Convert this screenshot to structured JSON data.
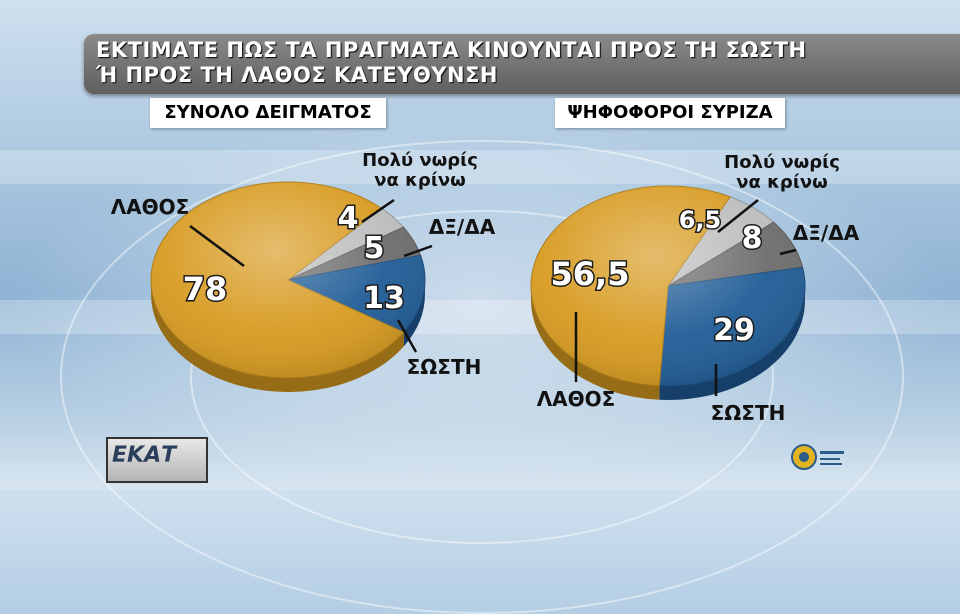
{
  "title": {
    "line1": "ΕΚΤΙΜΑΤΕ ΠΩΣ ΤΑ ΠΡΑΓΜΑΤΑ ΚΙΝΟΥΝΤΑΙ ΠΡΟΣ ΤΗ ΣΩΣΤΗ",
    "line2": "Ή ΠΡΟΣ ΤΗ ΛΑΘΟΣ ΚΑΤΕΥΘΥΝΣΗ"
  },
  "colors": {
    "lathos": "#d79a1f",
    "sosti": "#1f5c96",
    "dxda": "#6c6c6c",
    "noris": "#bcbcbc"
  },
  "chart_data": [
    {
      "type": "pie",
      "title": "ΣΥΝΟΛΟ ΔΕΙΓΜΑΤΟΣ",
      "slices": [
        {
          "key": "noris",
          "name": "Πολύ νωρίς να κρίνω",
          "name_lines": [
            "Πολύ νωρίς",
            "να κρίνω"
          ],
          "value": 4,
          "value_label": "4"
        },
        {
          "key": "dxda",
          "name": "ΔΞ/ΔΑ",
          "value": 5,
          "value_label": "5"
        },
        {
          "key": "sosti",
          "name": "ΣΩΣΤΗ",
          "value": 13,
          "value_label": "13"
        },
        {
          "key": "lathos",
          "name": "ΛΑΘΟΣ",
          "value": 78,
          "value_label": "78"
        }
      ]
    },
    {
      "type": "pie",
      "title": "ΨΗΦΟΦΟΡΟΙ ΣΥΡΙΖΑ",
      "slices": [
        {
          "key": "noris",
          "name": "Πολύ νωρίς να κρίνω",
          "name_lines": [
            "Πολύ νωρίς",
            "να κρίνω"
          ],
          "value": 6.5,
          "value_label": "6,5"
        },
        {
          "key": "dxda",
          "name": "ΔΞ/ΔΑ",
          "value": 8,
          "value_label": "8"
        },
        {
          "key": "sosti",
          "name": "ΣΩΣΤΗ",
          "value": 29,
          "value_label": "29"
        },
        {
          "key": "lathos",
          "name": "ΛΑΘΟΣ",
          "value": 56.5,
          "value_label": "56,5"
        }
      ]
    }
  ],
  "logos": {
    "left": "ΕΚΑΤ"
  }
}
